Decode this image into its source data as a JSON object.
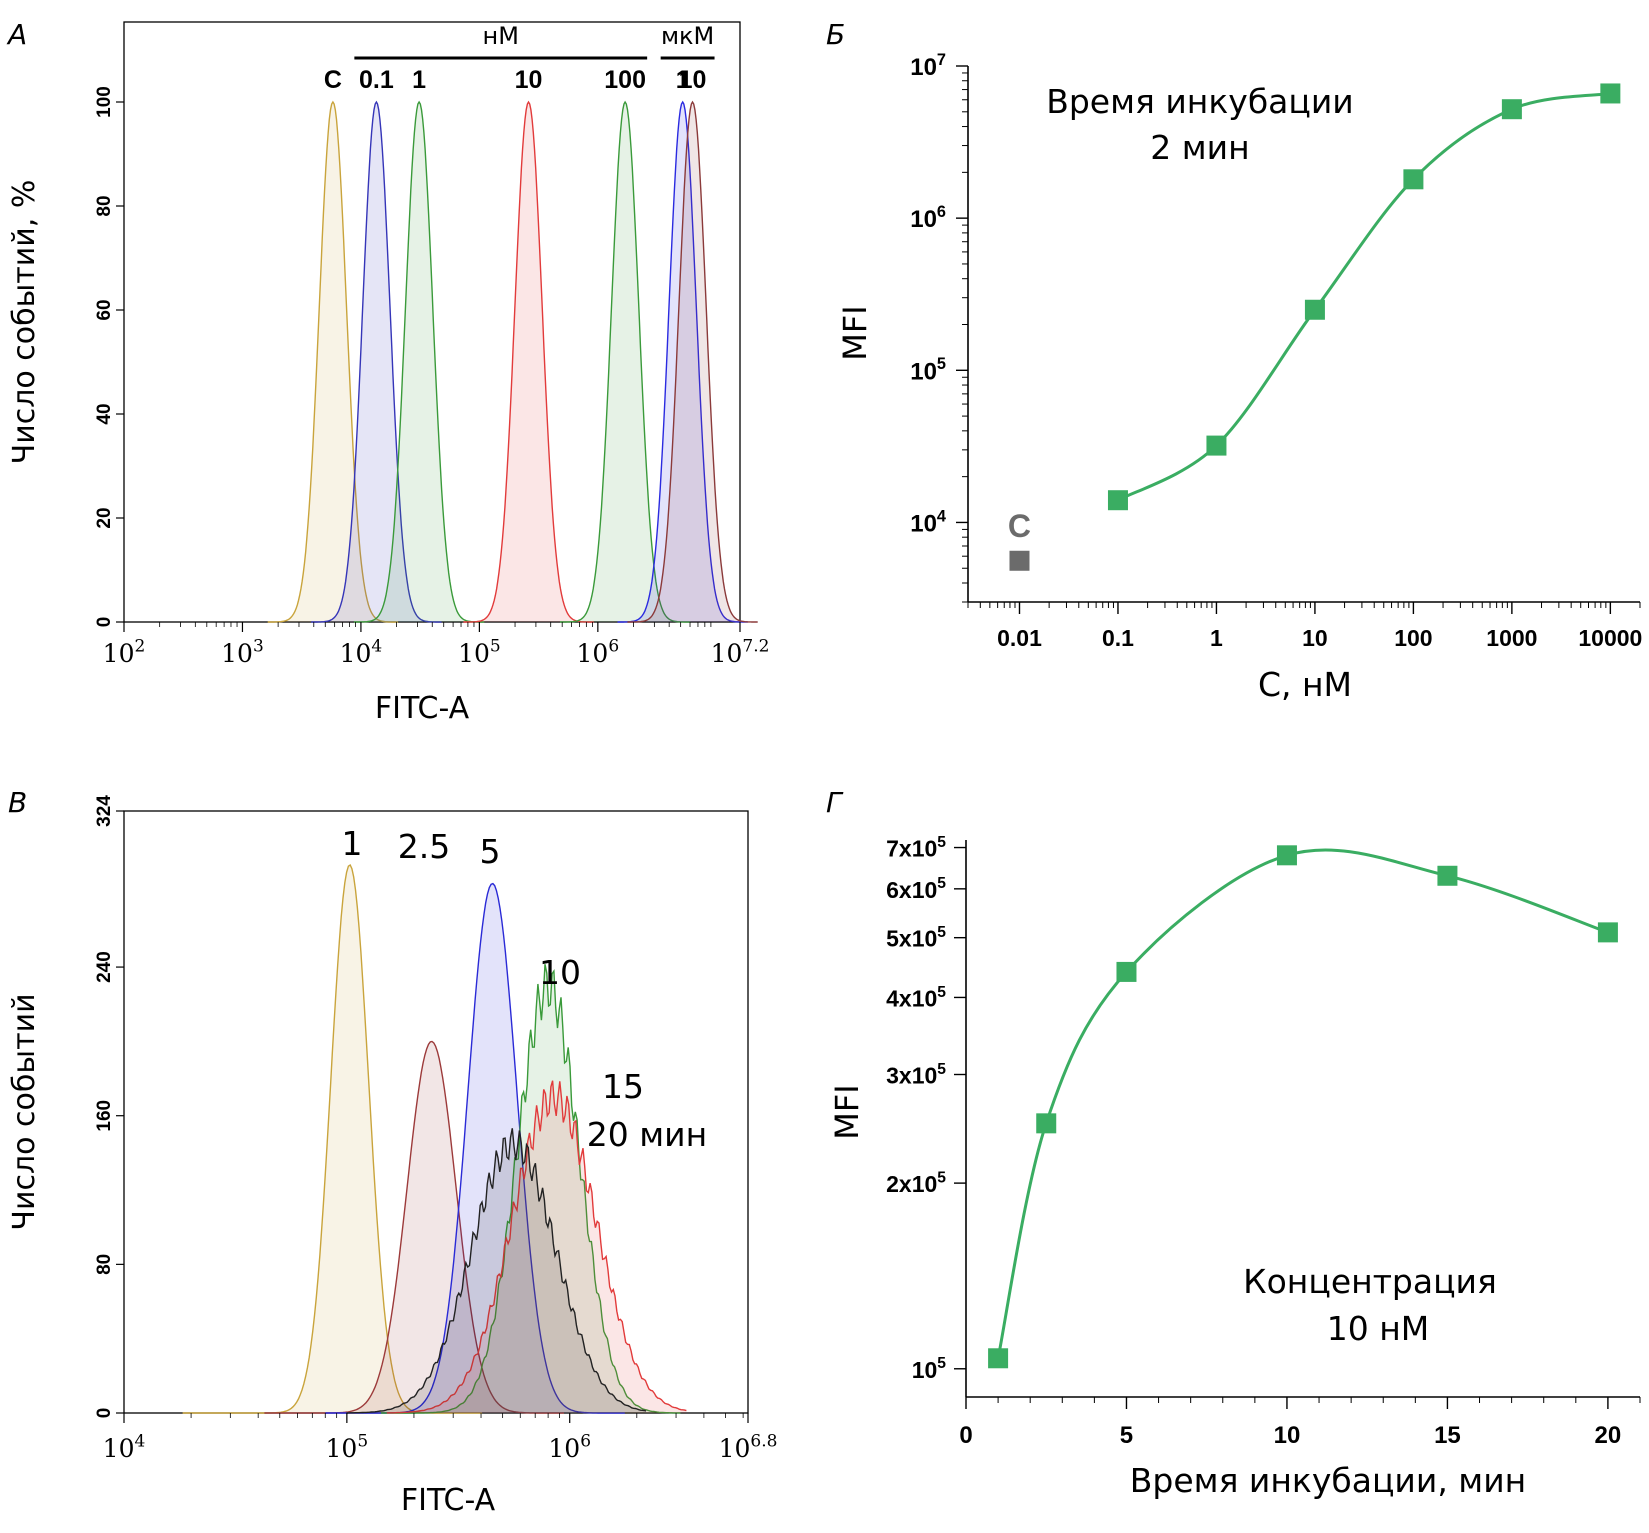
{
  "panel_letters": [
    "А",
    "Б",
    "В",
    "Г"
  ],
  "chart_data": [
    {
      "panel": "А",
      "type": "area",
      "xlabel": "FITC-A",
      "ylabel": "Число событий, %",
      "xscale": "log",
      "xlim": [
        100,
        15848932
      ],
      "ylim": [
        0,
        100
      ],
      "x_tick_labels": [
        {
          "base": "10",
          "exp": "2",
          "value": 100
        },
        {
          "base": "10",
          "exp": "3",
          "value": 1000
        },
        {
          "base": "10",
          "exp": "4",
          "value": 10000
        },
        {
          "base": "10",
          "exp": "5",
          "value": 100000
        },
        {
          "base": "10",
          "exp": "6",
          "value": 1000000
        },
        {
          "base": "10",
          "exp": "7.2",
          "value": 15848932
        }
      ],
      "y_ticks": [
        0,
        20,
        40,
        60,
        80,
        100
      ],
      "group_labels": [
        {
          "text": "нМ",
          "from_series": 1,
          "to_series": 4
        },
        {
          "text": "мкМ",
          "from_series": 5,
          "to_series": 6
        }
      ],
      "series": [
        {
          "name": "C",
          "color": "#c9a43c",
          "peak_x": 5800,
          "peak_y": 100
        },
        {
          "name": "0.1",
          "color": "#3535b8",
          "peak_x": 13500,
          "peak_y": 100
        },
        {
          "name": "1",
          "color": "#3a9a3a",
          "peak_x": 31000,
          "peak_y": 100
        },
        {
          "name": "10",
          "color": "#e23b3b",
          "peak_x": 260000,
          "peak_y": 100
        },
        {
          "name": "100",
          "color": "#3a9a3a",
          "peak_x": 1700000,
          "peak_y": 100
        },
        {
          "name": "1",
          "color": "#2a2ae0",
          "peak_x": 5200000,
          "peak_y": 100
        },
        {
          "name": "10",
          "color": "#8b3a3a",
          "peak_x": 6300000,
          "peak_y": 100
        }
      ]
    },
    {
      "panel": "Б",
      "type": "line",
      "xlabel": "C, нМ",
      "ylabel": "MFI",
      "xscale": "log",
      "yscale": "log",
      "xlim": [
        0.003,
        20000
      ],
      "ylim": [
        3000,
        10000000
      ],
      "x_tick_labels": [
        "0.01",
        "0.1",
        "1",
        "10",
        "100",
        "1000",
        "10000"
      ],
      "x_tick_values": [
        0.01,
        0.1,
        1,
        10,
        100,
        1000,
        10000
      ],
      "y_tick_labels": [
        {
          "base": "10",
          "exp": "4",
          "value": 10000
        },
        {
          "base": "10",
          "exp": "5",
          "value": 100000
        },
        {
          "base": "10",
          "exp": "6",
          "value": 1000000
        },
        {
          "base": "10",
          "exp": "7",
          "value": 10000000
        }
      ],
      "annotation": [
        "Время инкубации",
        "2 мин"
      ],
      "control": {
        "label": "C",
        "x": 0.01,
        "y": 5600,
        "color": "#6b6b6b"
      },
      "series": [
        {
          "color": "#3aad62",
          "x": [
            0.1,
            1,
            10,
            100,
            1000,
            10000
          ],
          "y": [
            14000,
            32000,
            250000,
            1800000,
            5200000,
            6600000
          ]
        }
      ]
    },
    {
      "panel": "В",
      "type": "area",
      "xlabel": "FITC-A",
      "ylabel": "Число событий",
      "xscale": "log",
      "xlim": [
        10000,
        6309573
      ],
      "ylim": [
        0,
        324
      ],
      "x_tick_labels": [
        {
          "base": "10",
          "exp": "4",
          "value": 10000
        },
        {
          "base": "10",
          "exp": "5",
          "value": 100000
        },
        {
          "base": "10",
          "exp": "6",
          "value": 1000000
        },
        {
          "base": "10",
          "exp": "6.8",
          "value": 6309573
        }
      ],
      "y_ticks": [
        0,
        80,
        160,
        240,
        324
      ],
      "annotation": [
        "15",
        "20 мин"
      ],
      "series": [
        {
          "name": "1",
          "color": "#c9a43c",
          "peak_x": 103000,
          "peak_y": 295
        },
        {
          "name": "2.5",
          "color": "#9c3a3a",
          "peak_x": 240000,
          "peak_y": 200
        },
        {
          "name": "5",
          "color": "#2a2ad6",
          "peak_x": 450000,
          "peak_y": 285
        },
        {
          "name": "10",
          "color": "#3a9a3a",
          "peak_x": 800000,
          "peak_y": 230
        },
        {
          "name": "15",
          "color": "#e23b3b",
          "peak_x": 850000,
          "peak_y": 170
        },
        {
          "name": "20 мин",
          "color": "#222222",
          "peak_x": 560000,
          "peak_y": 145
        }
      ]
    },
    {
      "panel": "Г",
      "type": "line",
      "xlabel": "Время инкубации, мин",
      "ylabel": "MFI",
      "yscale": "log",
      "xlim": [
        0,
        21
      ],
      "ylim": [
        90000,
        720000
      ],
      "x_ticks": [
        0,
        5,
        10,
        15,
        20
      ],
      "y_tick_labels": [
        {
          "base": "10",
          "mant": "",
          "exp": "5",
          "value": 100000
        },
        {
          "base": "x10",
          "mant": "2",
          "exp": "5",
          "value": 200000
        },
        {
          "base": "x10",
          "mant": "3",
          "exp": "5",
          "value": 300000
        },
        {
          "base": "x10",
          "mant": "4",
          "exp": "5",
          "value": 400000
        },
        {
          "base": "x10",
          "mant": "5",
          "exp": "5",
          "value": 500000
        },
        {
          "base": "x10",
          "mant": "6",
          "exp": "5",
          "value": 600000
        },
        {
          "base": "x10",
          "mant": "7",
          "exp": "5",
          "value": 700000
        }
      ],
      "annotation": [
        "Концентрация",
        "10 нМ"
      ],
      "series": [
        {
          "color": "#3aad62",
          "x": [
            1,
            2.5,
            5,
            10,
            15,
            20
          ],
          "y": [
            104000,
            250000,
            440000,
            680000,
            630000,
            510000
          ]
        }
      ]
    }
  ]
}
